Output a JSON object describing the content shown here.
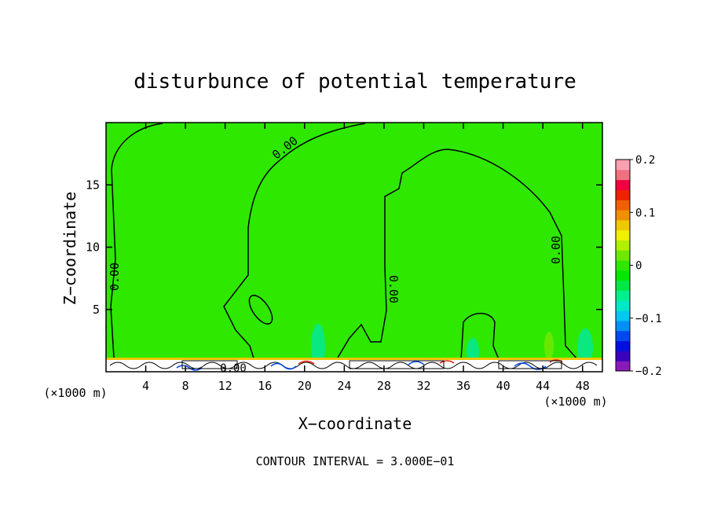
{
  "chart_data": {
    "type": "heatmap",
    "title": "disturbunce of potential temperature",
    "xlabel": "X−coordinate",
    "ylabel": "Z−coordinate",
    "x_unit": "(×1000 m)",
    "y_unit": "(×1000 m)",
    "xlim": [
      0,
      50
    ],
    "ylim": [
      0,
      20
    ],
    "x_ticks": [
      4,
      8,
      12,
      16,
      20,
      24,
      28,
      32,
      36,
      40,
      44,
      48
    ],
    "y_ticks": [
      5,
      10,
      15
    ],
    "footnote": "CONTOUR INTERVAL = 3.000E−01",
    "contour_label": "0.00",
    "colorbar": {
      "range": [
        -0.2,
        0.2
      ],
      "ticks": [
        {
          "value": 0.2,
          "label": "0.2"
        },
        {
          "value": 0.1,
          "label": "0.1"
        },
        {
          "value": 0,
          "label": "0"
        },
        {
          "value": -0.1,
          "label": "−0.1"
        },
        {
          "value": -0.2,
          "label": "−0.2"
        }
      ],
      "colors": [
        "#8a1ab8",
        "#3a00c0",
        "#0010e0",
        "#0048f0",
        "#0090f8",
        "#00c8f0",
        "#00e8c8",
        "#00f090",
        "#00e848",
        "#00e800",
        "#2ee800",
        "#6ee800",
        "#b0f000",
        "#f0f000",
        "#f0c800",
        "#f09000",
        "#f06000",
        "#f02000",
        "#f00040",
        "#f07080",
        "#f8a0b0"
      ],
      "background_color": "#2ee800"
    }
  }
}
